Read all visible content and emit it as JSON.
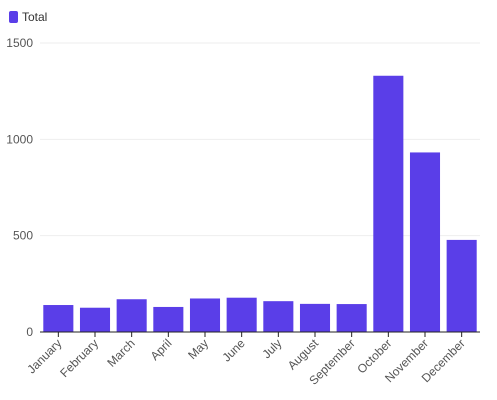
{
  "colors": {
    "bar": "#5a3ee8",
    "grid": "#eeeeee",
    "axis": "#222222"
  },
  "chart_data": {
    "type": "bar",
    "title": "",
    "xlabel": "",
    "ylabel": "",
    "legend": {
      "position": "top-left",
      "items": [
        "Total"
      ]
    },
    "categories": [
      "January",
      "February",
      "March",
      "April",
      "May",
      "June",
      "July",
      "August",
      "September",
      "October",
      "November",
      "December"
    ],
    "series": [
      {
        "name": "Total",
        "values": [
          140,
          126,
          170,
          130,
          174,
          178,
          160,
          146,
          145,
          1330,
          932,
          478
        ]
      }
    ],
    "ylim": [
      0,
      1500
    ],
    "yticks": [
      0,
      500,
      1000,
      1500
    ],
    "grid": "horizontal"
  }
}
